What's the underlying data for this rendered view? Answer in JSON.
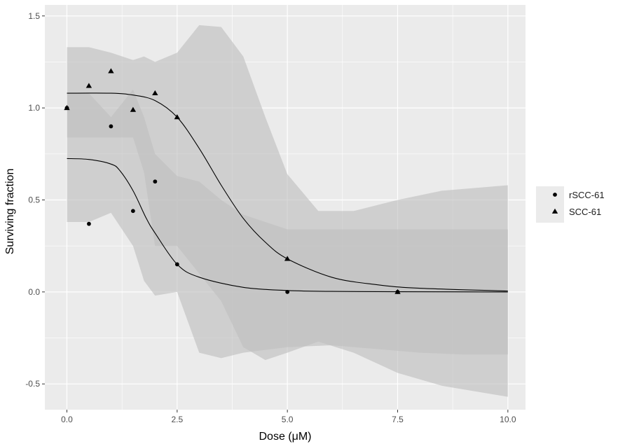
{
  "chart_data": {
    "type": "scatter",
    "xlabel": "Dose (μM)",
    "ylabel": "Surviving fraction",
    "xlim": [
      -0.5,
      10.4
    ],
    "ylim": [
      -0.64,
      1.56
    ],
    "x_ticks": [
      0.0,
      2.5,
      5.0,
      7.5,
      10.0
    ],
    "x_tick_labels": [
      "0.0",
      "2.5",
      "5.0",
      "7.5",
      "10.0"
    ],
    "y_ticks": [
      -0.5,
      0.0,
      0.5,
      1.0,
      1.5
    ],
    "y_tick_labels": [
      "-0.5",
      "0.0",
      "0.5",
      "1.0",
      "1.5"
    ],
    "grid": true,
    "legend_position": "right",
    "colors": {
      "panel": "#ebebeb",
      "grid": "#ffffff",
      "band": "#bebebe",
      "band_opacity": 0.62,
      "points": "#000000",
      "curve": "#000000"
    },
    "series": [
      {
        "name": "rSCC-61",
        "marker": "circle",
        "points": [
          {
            "x": 0.0,
            "y": 1.0
          },
          {
            "x": 0.5,
            "y": 0.37
          },
          {
            "x": 1.0,
            "y": 0.9
          },
          {
            "x": 1.5,
            "y": 0.44
          },
          {
            "x": 2.0,
            "y": 0.6
          },
          {
            "x": 2.5,
            "y": 0.15
          },
          {
            "x": 5.0,
            "y": 0.0
          },
          {
            "x": 7.5,
            "y": 0.0
          }
        ],
        "fit": {
          "x": [
            0.0,
            0.5,
            1.0,
            1.2,
            1.5,
            1.8,
            2.0,
            2.5,
            3.0,
            4.0,
            5.0,
            6.0,
            7.5,
            10.0
          ],
          "y": [
            0.725,
            0.72,
            0.695,
            0.66,
            0.55,
            0.4,
            0.32,
            0.15,
            0.08,
            0.025,
            0.008,
            0.003,
            0.001,
            0.0
          ]
        },
        "band": {
          "x": [
            0.0,
            0.5,
            1.0,
            1.5,
            1.75,
            2.0,
            2.5,
            3.0,
            3.5,
            4.0,
            5.0,
            6.0,
            7.0,
            8.0,
            9.0,
            10.0
          ],
          "upper": [
            1.08,
            1.08,
            0.95,
            1.1,
            0.95,
            0.75,
            0.63,
            0.6,
            0.5,
            0.42,
            0.34,
            0.34,
            0.34,
            0.34,
            0.34,
            0.34
          ],
          "lower": [
            0.38,
            0.38,
            0.43,
            0.25,
            0.06,
            -0.02,
            0.0,
            -0.33,
            -0.36,
            -0.33,
            -0.3,
            -0.29,
            -0.31,
            -0.33,
            -0.34,
            -0.34
          ]
        }
      },
      {
        "name": "SCC-61",
        "marker": "triangle",
        "points": [
          {
            "x": 0.0,
            "y": 1.0
          },
          {
            "x": 0.5,
            "y": 1.12
          },
          {
            "x": 1.0,
            "y": 1.2
          },
          {
            "x": 1.5,
            "y": 0.99
          },
          {
            "x": 2.0,
            "y": 1.08
          },
          {
            "x": 2.5,
            "y": 0.95
          },
          {
            "x": 5.0,
            "y": 0.18
          },
          {
            "x": 7.5,
            "y": 0.0
          }
        ],
        "fit": {
          "x": [
            0.0,
            1.0,
            1.5,
            2.0,
            2.5,
            3.0,
            3.5,
            4.0,
            4.5,
            5.0,
            6.0,
            7.0,
            8.0,
            10.0
          ],
          "y": [
            1.08,
            1.08,
            1.07,
            1.04,
            0.95,
            0.78,
            0.58,
            0.4,
            0.27,
            0.18,
            0.08,
            0.04,
            0.02,
            0.005
          ]
        },
        "band": {
          "x": [
            0.0,
            0.5,
            1.0,
            1.5,
            1.75,
            2.0,
            2.5,
            3.0,
            3.5,
            4.0,
            4.5,
            5.0,
            5.7,
            6.5,
            7.5,
            8.5,
            10.0
          ],
          "upper": [
            1.33,
            1.33,
            1.3,
            1.26,
            1.28,
            1.25,
            1.3,
            1.45,
            1.44,
            1.28,
            0.95,
            0.64,
            0.44,
            0.44,
            0.5,
            0.55,
            0.58
          ],
          "lower": [
            0.84,
            0.84,
            0.84,
            0.84,
            0.65,
            0.25,
            0.25,
            0.1,
            -0.05,
            -0.3,
            -0.37,
            -0.33,
            -0.27,
            -0.33,
            -0.44,
            -0.51,
            -0.57
          ]
        }
      }
    ]
  }
}
